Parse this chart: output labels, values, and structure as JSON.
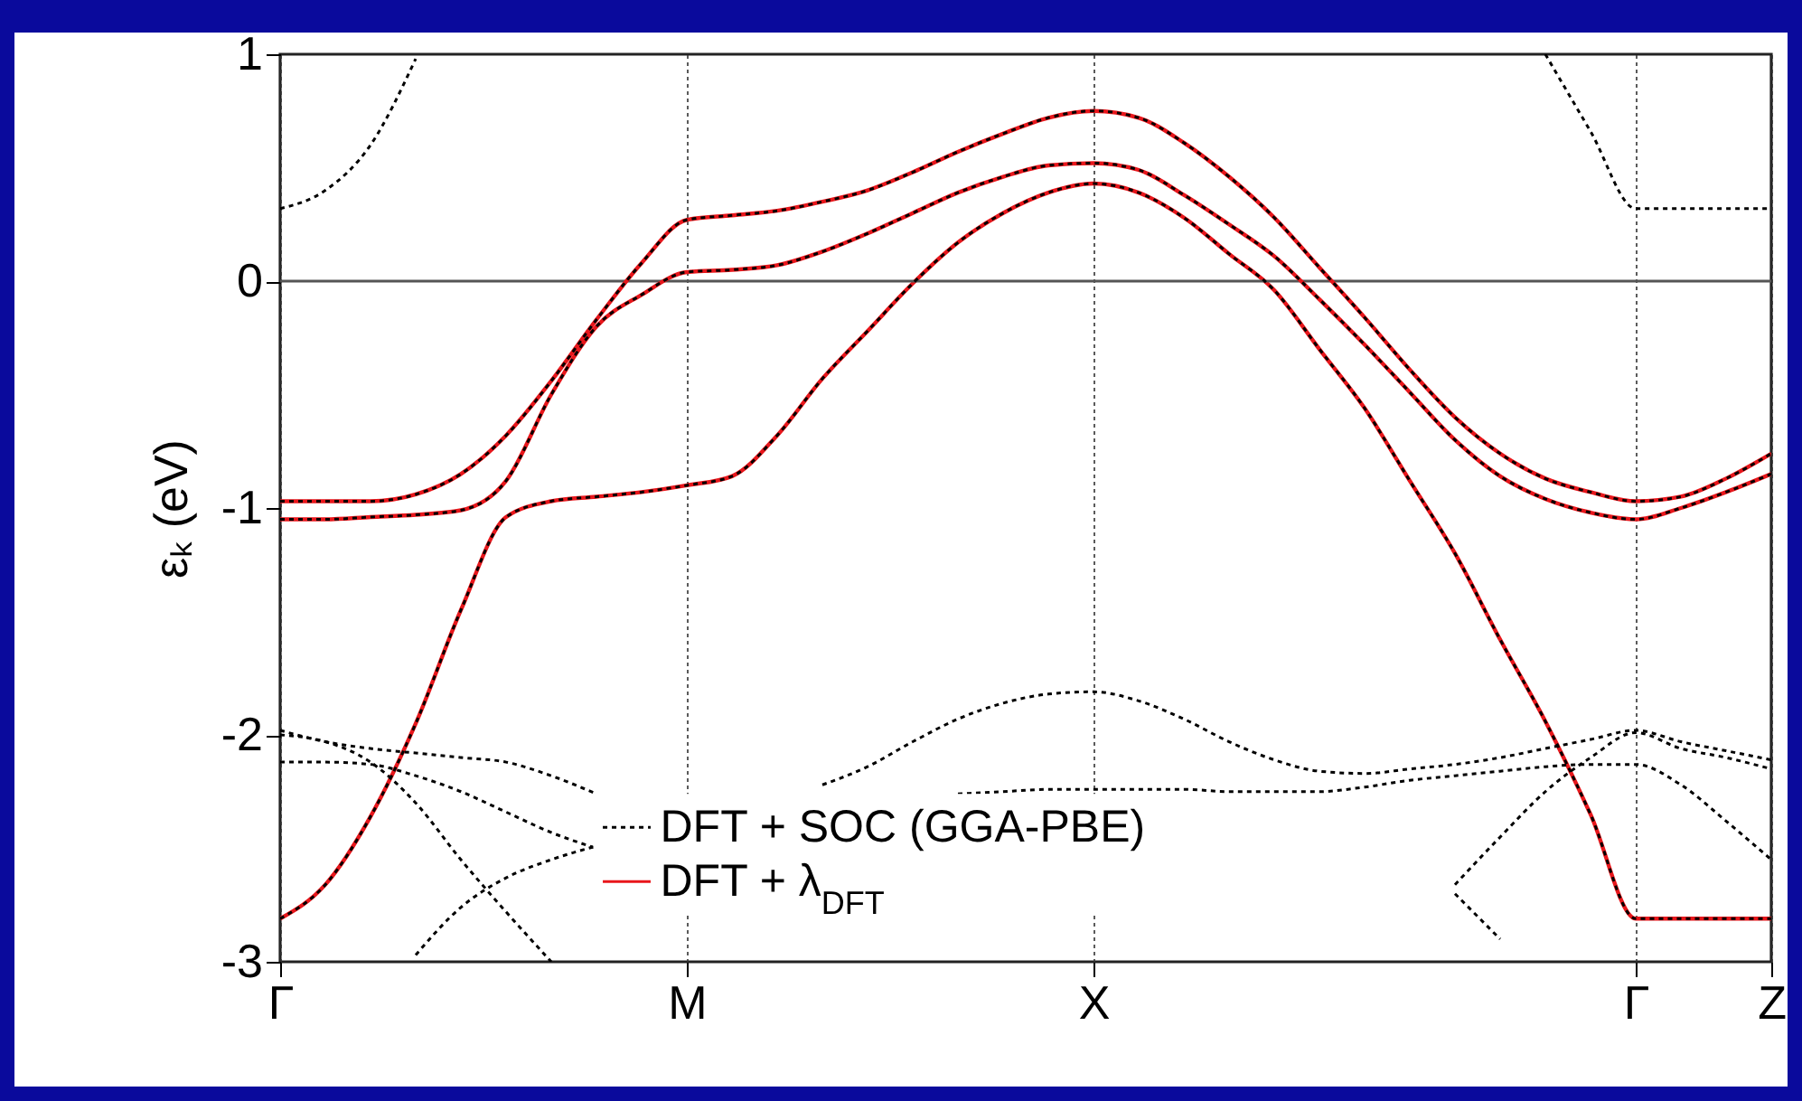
{
  "chart_data": {
    "type": "line",
    "ylabel": "εₖ (eV)",
    "ylim": [
      -3,
      1
    ],
    "yticks": [
      -3,
      -2,
      -1,
      0,
      1
    ],
    "grid": "x",
    "legend": "bottom",
    "categories": [
      "Γ",
      null,
      null,
      null,
      null,
      null,
      null,
      null,
      null,
      "M",
      null,
      null,
      null,
      null,
      null,
      null,
      null,
      null,
      "X",
      null,
      null,
      null,
      null,
      null,
      null,
      null,
      null,
      null,
      null,
      null,
      "Γ",
      null,
      null,
      "Z"
    ],
    "ref_lines": [
      {
        "axis": "y",
        "value": 0,
        "color": "#555555",
        "line_style": "solid"
      }
    ],
    "series": [
      {
        "name": "DFT + SOC (GGA-PBE)",
        "color": "#000000",
        "line_style": "dotted",
        "values": [
          -0.97,
          -0.97,
          -0.97,
          -0.94,
          -0.85,
          -0.68,
          -0.44,
          -0.17,
          0.08,
          0.27,
          0.29,
          0.31,
          0.35,
          0.4,
          0.48,
          0.57,
          0.65,
          0.72,
          0.75,
          0.72,
          0.61,
          0.46,
          0.28,
          0.06,
          -0.16,
          -0.39,
          -0.6,
          -0.76,
          -0.87,
          -0.93,
          -0.97,
          -0.95,
          -0.87,
          -0.76
        ]
      },
      {
        "color": "#000000",
        "line_style": "dotted",
        "values": [
          -1.05,
          -1.05,
          -1.04,
          -1.03,
          -1.01,
          -0.88,
          -0.5,
          -0.2,
          -0.06,
          0.04,
          0.05,
          0.07,
          0.13,
          0.21,
          0.3,
          0.39,
          0.46,
          0.51,
          0.52,
          0.49,
          0.38,
          0.25,
          0.11,
          -0.08,
          -0.28,
          -0.49,
          -0.7,
          -0.86,
          -0.96,
          -1.02,
          -1.05,
          -1.0,
          -0.93,
          -0.85
        ]
      },
      {
        "color": "#000000",
        "line_style": "dotted",
        "values": [
          -2.81,
          -2.66,
          -2.36,
          -1.95,
          -1.45,
          -1.04,
          -0.97,
          -0.95,
          -0.93,
          -0.9,
          -0.86,
          -0.68,
          -0.43,
          -0.22,
          -0.01,
          0.17,
          0.3,
          0.39,
          0.43,
          0.39,
          0.28,
          0.12,
          -0.04,
          -0.3,
          -0.56,
          -0.88,
          -1.2,
          -1.58,
          -1.94,
          -2.35,
          -2.81,
          -2.81,
          -2.81,
          -2.81
        ]
      },
      {
        "color": "#000000",
        "line_style": "dotted",
        "values": [
          0.32,
          0.4,
          0.6,
          0.98,
          null,
          null,
          null,
          null,
          null,
          null,
          null,
          null,
          null,
          null,
          null,
          null,
          null,
          null,
          null,
          null,
          null,
          null,
          null,
          null,
          null,
          null,
          null,
          null,
          null,
          null,
          null,
          null,
          null,
          null
        ]
      },
      {
        "color": "#000000",
        "line_style": "dotted",
        "values": [
          null,
          null,
          null,
          null,
          null,
          null,
          null,
          null,
          null,
          null,
          null,
          null,
          null,
          null,
          null,
          null,
          null,
          null,
          null,
          null,
          null,
          null,
          null,
          null,
          null,
          null,
          null,
          null,
          1.0,
          0.66,
          0.32,
          0.32,
          0.32,
          0.32
        ]
      },
      {
        "color": "#000000",
        "line_style": "dotted",
        "values": [
          -1.98,
          -2.03,
          -2.06,
          -2.08,
          -2.1,
          -2.12,
          -2.18,
          -2.26,
          null,
          null,
          null,
          null,
          null,
          null,
          null,
          null,
          null,
          null,
          null,
          null,
          null,
          null,
          null,
          null,
          null,
          null,
          null,
          null,
          null,
          null,
          null,
          null,
          null,
          null
        ]
      },
      {
        "color": "#000000",
        "line_style": "dotted",
        "values": [
          -2.12,
          -2.12,
          -2.13,
          -2.18,
          -2.25,
          -2.34,
          -2.43,
          -2.5,
          null,
          null,
          null,
          null,
          null,
          null,
          null,
          null,
          null,
          null,
          null,
          null,
          null,
          null,
          null,
          null,
          null,
          null,
          null,
          null,
          null,
          null,
          null,
          null,
          null,
          null
        ]
      },
      {
        "color": "#000000",
        "line_style": "dotted",
        "values": [
          -2.0,
          -2.03,
          -2.12,
          -2.3,
          -2.55,
          -2.78,
          -3.0,
          null,
          null,
          null,
          null,
          null,
          null,
          null,
          null,
          null,
          null,
          null,
          null,
          null,
          null,
          null,
          null,
          null,
          null,
          null,
          null,
          null,
          null,
          null,
          null,
          null,
          null,
          null
        ]
      },
      {
        "color": "#000000",
        "line_style": "dotted",
        "values": [
          null,
          null,
          null,
          -2.97,
          -2.76,
          -2.63,
          -2.55,
          -2.49,
          null,
          null,
          null,
          null,
          null,
          null,
          null,
          null,
          null,
          null,
          null,
          null,
          null,
          null,
          null,
          null,
          null,
          null,
          null,
          null,
          null,
          null,
          null,
          null,
          null,
          null
        ]
      },
      {
        "color": "#000000",
        "line_style": "dotted",
        "values": [
          null,
          null,
          null,
          null,
          null,
          null,
          null,
          null,
          null,
          null,
          null,
          null,
          -2.22,
          -2.14,
          -2.03,
          -1.93,
          -1.86,
          -1.82,
          -1.81,
          -1.85,
          -1.93,
          -2.03,
          -2.11,
          -2.16,
          -2.17,
          -2.15,
          -2.13,
          -2.1,
          -2.06,
          -2.02,
          -1.98,
          -2.03,
          -2.07,
          -2.11
        ]
      },
      {
        "color": "#000000",
        "line_style": "dotted",
        "values": [
          null,
          null,
          null,
          null,
          null,
          null,
          null,
          null,
          null,
          null,
          null,
          null,
          null,
          null,
          null,
          -2.26,
          -2.25,
          -2.24,
          -2.24,
          -2.24,
          -2.24,
          -2.25,
          -2.25,
          -2.25,
          -2.23,
          -2.2,
          -2.18,
          -2.16,
          -2.14,
          -2.13,
          -2.13,
          -2.22,
          -2.38,
          -2.55
        ]
      },
      {
        "color": "#000000",
        "line_style": "dotted",
        "values": [
          null,
          null,
          null,
          null,
          null,
          null,
          null,
          null,
          null,
          null,
          null,
          null,
          null,
          null,
          null,
          null,
          null,
          null,
          null,
          null,
          null,
          null,
          null,
          null,
          null,
          null,
          -2.66,
          -2.45,
          -2.25,
          -2.1,
          -1.99,
          -2.06,
          -2.1,
          -2.15
        ]
      },
      {
        "color": "#000000",
        "line_style": "dotted",
        "values": [
          null,
          null,
          null,
          null,
          null,
          null,
          null,
          null,
          null,
          null,
          null,
          null,
          null,
          null,
          null,
          null,
          null,
          null,
          null,
          null,
          null,
          null,
          null,
          null,
          null,
          null,
          -2.7,
          -2.9,
          null,
          null,
          null,
          null,
          null,
          null
        ]
      },
      {
        "name": "DFT + λ$_{DFT}$",
        "color": "#e8161b",
        "line_style": "solid",
        "values": [
          -0.97,
          -0.97,
          -0.97,
          -0.94,
          -0.85,
          -0.68,
          -0.44,
          -0.17,
          0.08,
          0.27,
          0.29,
          0.31,
          0.35,
          0.4,
          0.48,
          0.57,
          0.65,
          0.72,
          0.75,
          0.72,
          0.61,
          0.46,
          0.28,
          0.06,
          -0.16,
          -0.39,
          -0.6,
          -0.76,
          -0.87,
          -0.93,
          -0.97,
          -0.95,
          -0.87,
          -0.76
        ]
      },
      {
        "color": "#e8161b",
        "line_style": "solid",
        "values": [
          -1.05,
          -1.05,
          -1.04,
          -1.03,
          -1.01,
          -0.88,
          -0.5,
          -0.2,
          -0.06,
          0.04,
          0.05,
          0.07,
          0.13,
          0.21,
          0.3,
          0.39,
          0.46,
          0.51,
          0.52,
          0.49,
          0.38,
          0.25,
          0.11,
          -0.08,
          -0.28,
          -0.49,
          -0.7,
          -0.86,
          -0.96,
          -1.02,
          -1.05,
          -1.0,
          -0.93,
          -0.85
        ]
      },
      {
        "color": "#e8161b",
        "line_style": "solid",
        "values": [
          -2.81,
          -2.66,
          -2.36,
          -1.95,
          -1.45,
          -1.04,
          -0.97,
          -0.95,
          -0.93,
          -0.9,
          -0.86,
          -0.68,
          -0.43,
          -0.22,
          -0.01,
          0.17,
          0.3,
          0.39,
          0.43,
          0.39,
          0.28,
          0.12,
          -0.04,
          -0.3,
          -0.56,
          -0.88,
          -1.2,
          -1.58,
          -1.94,
          -2.35,
          -2.81,
          -2.81,
          -2.81,
          -2.81
        ]
      }
    ]
  }
}
